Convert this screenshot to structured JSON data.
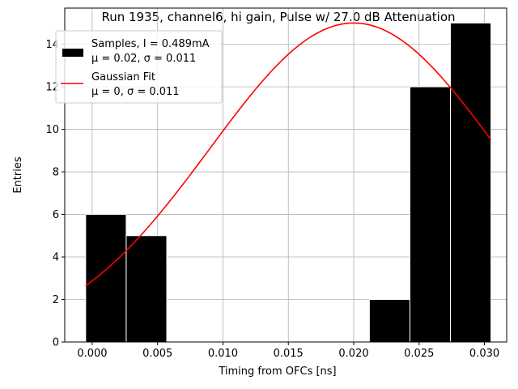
{
  "chart_data": {
    "type": "bar",
    "title": "Run 1935, channel6, hi gain, Pulse w/ 27.0 dB Attenuation",
    "xlabel": "Timing from OFCs [ns]",
    "ylabel": "Entries",
    "xlim": [
      -0.0021,
      0.0317
    ],
    "ylim": [
      0,
      15.7
    ],
    "grid": true,
    "legend_position": "top-left",
    "x_ticks": [
      0.0,
      0.005,
      0.01,
      0.015,
      0.02,
      0.025,
      0.03
    ],
    "x_tick_labels": [
      "0.000",
      "0.005",
      "0.010",
      "0.015",
      "0.020",
      "0.025",
      "0.030"
    ],
    "y_ticks": [
      0,
      2,
      4,
      6,
      8,
      10,
      12,
      14
    ],
    "y_tick_labels": [
      "0",
      "2",
      "4",
      "6",
      "8",
      "10",
      "12",
      "14"
    ],
    "histogram": {
      "name_line1": "Samples, I = 0.489mA",
      "name_line2": "μ = 0.02, σ = 0.011",
      "color": "#000000",
      "edge_color": "#ffffff",
      "bins": [
        {
          "x0": -0.0005,
          "x1": 0.0026,
          "count": 6
        },
        {
          "x0": 0.0026,
          "x1": 0.0057,
          "count": 5
        },
        {
          "x0": 0.0057,
          "x1": 0.0088,
          "count": 0
        },
        {
          "x0": 0.0088,
          "x1": 0.0119,
          "count": 0
        },
        {
          "x0": 0.0119,
          "x1": 0.015,
          "count": 0
        },
        {
          "x0": 0.015,
          "x1": 0.0181,
          "count": 0
        },
        {
          "x0": 0.0181,
          "x1": 0.0212,
          "count": 0
        },
        {
          "x0": 0.0212,
          "x1": 0.0243,
          "count": 2
        },
        {
          "x0": 0.0243,
          "x1": 0.0274,
          "count": 12
        },
        {
          "x0": 0.0274,
          "x1": 0.0305,
          "count": 15
        }
      ]
    },
    "fit": {
      "name_line1": "Gaussian Fit",
      "name_line2": "μ = 0, σ = 0.011",
      "color": "#ff0000",
      "amplitude": 15.0,
      "mean": 0.02,
      "sigma": 0.011,
      "x_range": [
        -0.0005,
        0.0305
      ]
    }
  }
}
